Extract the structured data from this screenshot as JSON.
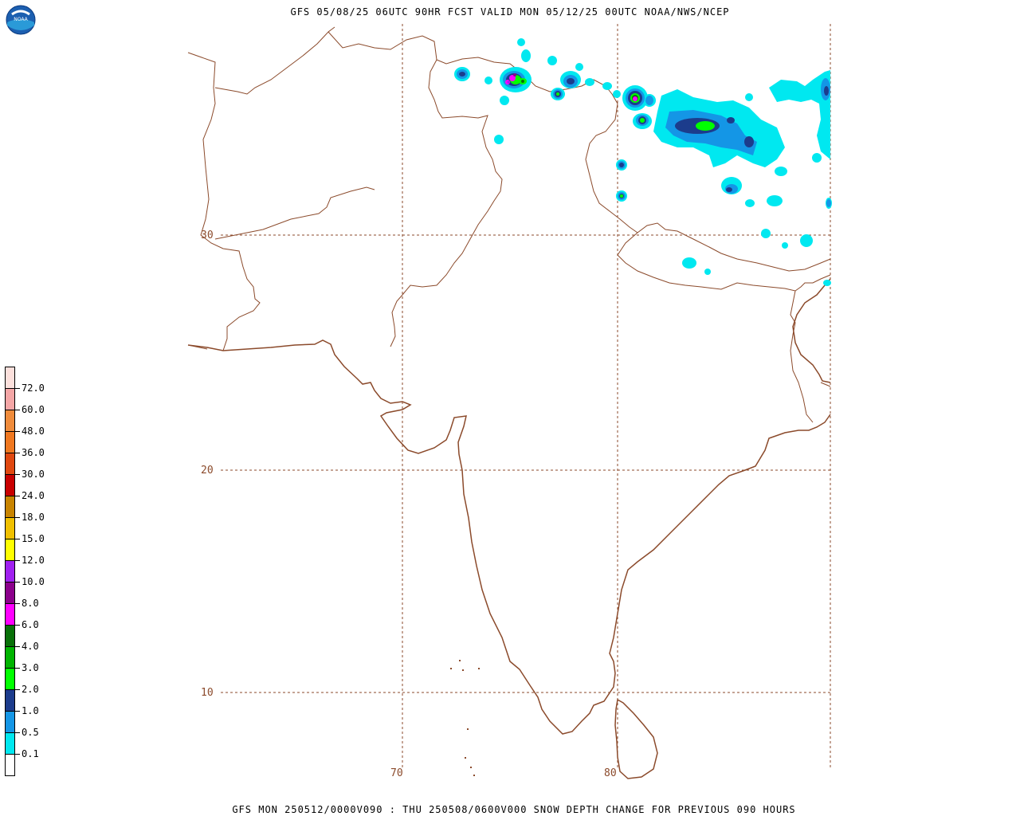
{
  "header": {
    "title": "GFS 05/08/25 06UTC 90HR FCST VALID MON 05/12/25 00UTC NOAA/NWS/NCEP"
  },
  "footer": {
    "caption": "GFS MON 250512/0000V090 : THU 250508/0600V000 SNOW DEPTH CHANGE FOR PREVIOUS 090 HOURS"
  },
  "logo": {
    "text": "NOAA",
    "icon": "noaa-logo-icon"
  },
  "map": {
    "lat_labels": [
      "30",
      "20",
      "10"
    ],
    "lon_labels": [
      "70",
      "80"
    ],
    "coast_color": "#8b4a2b",
    "grid_color": "#8b4a2b"
  },
  "legend": {
    "levels": [
      "72.0",
      "60.0",
      "48.0",
      "36.0",
      "30.0",
      "24.0",
      "18.0",
      "15.0",
      "12.0",
      "10.0",
      "8.0",
      "6.0",
      "4.0",
      "3.0",
      "2.0",
      "1.0",
      "0.5",
      "0.1"
    ],
    "colors": [
      "#fce0dc",
      "#f4a6a6",
      "#f08c3c",
      "#f07820",
      "#e04810",
      "#c80000",
      "#c88400",
      "#f0c000",
      "#ffff00",
      "#a020f0",
      "#8b008b",
      "#ff00ff",
      "#087008",
      "#00b400",
      "#00ff00",
      "#1c3c8c",
      "#1496e6",
      "#00e8f0",
      "#ffffff"
    ]
  }
}
